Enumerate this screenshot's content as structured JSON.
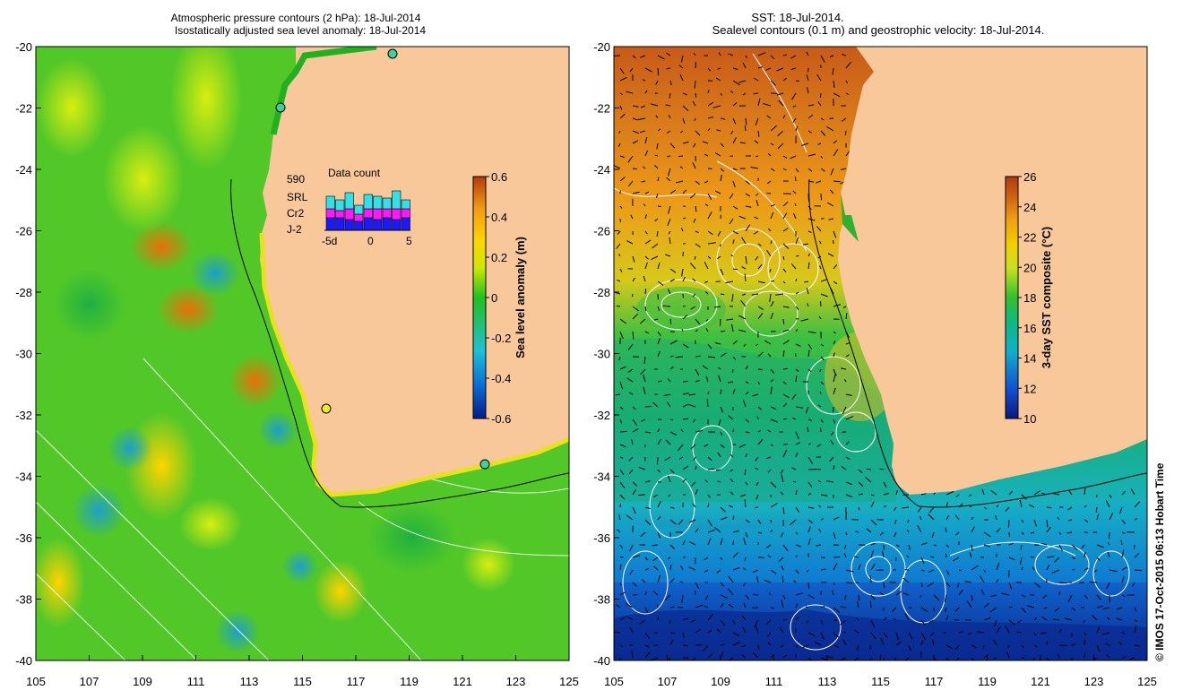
{
  "left_panel": {
    "title_line1": "Atmospheric pressure contours (2 hPa): 18-Jul-2014",
    "title_line2": "Isostatically adjusted sea level anomaly: 18-Jul-2014",
    "colorbar_label": "Sea level anomaly (m)",
    "colorbar_ticks": [
      "0.6",
      "0.4",
      "0.2",
      "0",
      "-0.2",
      "-0.4",
      "-0.6"
    ],
    "data_count": {
      "title": "Data count",
      "max_value": "590",
      "sat1": "SRL",
      "sat1_color": "#33e0e8",
      "sat2": "Cr2",
      "sat2_color": "#ff19ff",
      "sat3": "J-2",
      "sat3_color": "#1a1aff",
      "xticks": [
        "-5d",
        "0",
        "5"
      ]
    }
  },
  "right_panel": {
    "title_line1": "SST: 18-Jul-2014.",
    "title_line2": "Sealevel contours (0.1 m) and geostrophic velocity: 18-Jul-2014.",
    "colorbar_label": "3-day SST composite (°C)",
    "colorbar_ticks": [
      "26",
      "24",
      "22",
      "20",
      "18",
      "16",
      "14",
      "12",
      "10"
    ]
  },
  "credit": "© IMOS 17-Oct-2015 06:13 Hobart Time",
  "axes": {
    "yticks": [
      "-20",
      "-22",
      "-24",
      "-26",
      "-28",
      "-30",
      "-32",
      "-34",
      "-36",
      "-38",
      "-40"
    ],
    "xticks": [
      "105",
      "107",
      "109",
      "111",
      "113",
      "115",
      "117",
      "119",
      "121",
      "123",
      "125"
    ]
  },
  "colors": {
    "land": "#f8c79a",
    "sla_ramp": [
      "#061a8c",
      "#0a6fd6",
      "#1ec0d8",
      "#22c05a",
      "#20c020",
      "#c8e800",
      "#ffd400",
      "#f29a10",
      "#b43a0a"
    ],
    "sst_ramp": [
      "#0a1a7a",
      "#1050d0",
      "#10b0c8",
      "#10b880",
      "#30c030",
      "#c8e020",
      "#f0d000",
      "#f0a010",
      "#d06010",
      "#b03a10"
    ]
  },
  "chart_data": [
    {
      "type": "heatmap",
      "title": "Atmospheric pressure contours (2 hPa): 18-Jul-2014 / Isostatically adjusted sea level anomaly: 18-Jul-2014",
      "xlabel": "",
      "ylabel": "",
      "xlim": [
        105,
        125
      ],
      "ylim": [
        -40,
        -20
      ],
      "colorbar": {
        "label": "Sea level anomaly (m)",
        "range": [
          -0.6,
          0.6
        ]
      },
      "grid": false,
      "inset": {
        "type": "bar",
        "title": "Data count",
        "max": 590,
        "series": [
          {
            "name": "SRL"
          },
          {
            "name": "Cr2"
          },
          {
            "name": "J-2"
          }
        ],
        "xticks": [
          "-5d",
          "0",
          "5"
        ]
      }
    },
    {
      "type": "heatmap",
      "title": "SST: 18-Jul-2014. / Sealevel contours (0.1 m) and geostrophic velocity: 18-Jul-2014.",
      "xlabel": "",
      "ylabel": "",
      "xlim": [
        105,
        125
      ],
      "ylim": [
        -40,
        -20
      ],
      "colorbar": {
        "label": "3-day SST composite (°C)",
        "range": [
          10,
          26
        ]
      },
      "grid": false
    }
  ]
}
